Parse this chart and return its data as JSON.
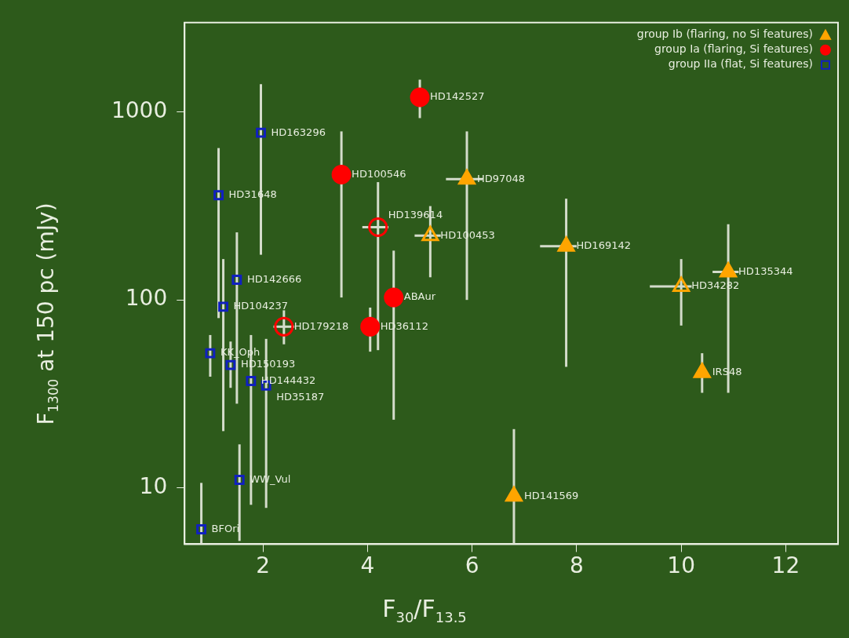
{
  "chart_data": {
    "type": "scatter",
    "xlabel": "F$_{30}$/F$_{13.5}$",
    "ylabel": "F$_{1300}$ at 150 pc (mJy)",
    "xlim": [
      0.5,
      13
    ],
    "xticks": [
      2,
      4,
      6,
      8,
      10,
      12
    ],
    "ylim": [
      5,
      3000
    ],
    "yticks": [
      10,
      100,
      1000
    ],
    "log": "y",
    "grid": false,
    "legend": "top right",
    "series": [
      {
        "name": "group Ib (flaring, no Si features)",
        "color": "#ffa500",
        "marker": "triangle",
        "x": [
          5.9,
          7.8,
          10.9,
          10.4,
          6.8
        ],
        "values": [
          440,
          193,
          141,
          41,
          9
        ],
        "errors": [
          [
            100,
            790
          ],
          [
            44,
            346
          ],
          [
            32,
            253
          ],
          [
            32,
            52
          ],
          [
            5,
            20.5
          ]
        ],
        "xerrors": [
          [
            5.5,
            6.2
          ],
          [
            7.3,
            8.0
          ],
          [
            10.6,
            11.1
          ],
          null,
          null
        ]
      },
      {
        "name": "group Ia (flaring, Si features)",
        "color": "#ff0000",
        "marker": "circle",
        "x": [
          5.0,
          3.5,
          4.5,
          4.05
        ],
        "values": [
          1200,
          465,
          103,
          72
        ],
        "errors": [
          [
            930,
            1490
          ],
          [
            103,
            790
          ],
          [
            23,
            183
          ],
          [
            53,
            91
          ]
        ]
      },
      {
        "name": "group IIa (flat, Si features)",
        "color": "#1020c0",
        "marker": "square",
        "x": [
          1.96,
          1.15,
          1.5,
          1.24,
          0.99,
          1.38,
          1.77,
          2.06,
          1.55,
          0.82
        ],
        "values": [
          777,
          361,
          128,
          92,
          52,
          45,
          37,
          35,
          11,
          6
        ],
        "errors": [
          [
            174,
            1410
          ],
          [
            80,
            644
          ],
          [
            28,
            229
          ],
          [
            20,
            165
          ],
          [
            39,
            65
          ],
          [
            34,
            60
          ],
          [
            8.1,
            65
          ],
          [
            7.8,
            62
          ],
          [
            5.2,
            17
          ],
          [
            5,
            10.6
          ]
        ]
      },
      {
        "color": "#ffa500",
        "marker": "triangle",
        "x": [
          5.2,
          10.0
        ],
        "values": [
          220,
          118
        ],
        "errors": [
          [
            132,
            316
          ],
          [
            73,
            165
          ]
        ],
        "xerrors": [
          [
            4.9,
            5.4
          ],
          [
            9.4,
            10.2
          ]
        ]
      },
      {
        "color": "#ff0000",
        "marker": "circle",
        "x": [
          4.2,
          2.4
        ],
        "values": [
          244,
          72
        ],
        "errors": [
          [
            54,
            424
          ],
          [
            58,
            88
          ]
        ],
        "xerrors": [
          [
            3.9,
            4.4
          ],
          [
            2.2,
            2.6
          ]
        ]
      }
    ],
    "annotations": [
      {
        "text": "HD97048",
        "x": 5.9,
        "y": 440
      },
      {
        "text": "HD169142",
        "x": 7.8,
        "y": 193
      },
      {
        "text": "HD135344",
        "x": 10.9,
        "y": 141
      },
      {
        "text": "IRS48",
        "x": 10.4,
        "y": 41
      },
      {
        "text": "HD141569",
        "x": 6.8,
        "y": 9
      },
      {
        "text": "HD142527",
        "x": 5.0,
        "y": 1200
      },
      {
        "text": "HD100546",
        "x": 3.5,
        "y": 465
      },
      {
        "text": "ABAur",
        "x": 4.5,
        "y": 103
      },
      {
        "text": "HD36112",
        "x": 4.05,
        "y": 72
      },
      {
        "text": "HD163296",
        "x": 1.96,
        "y": 777
      },
      {
        "text": "HD31648",
        "x": 1.15,
        "y": 361
      },
      {
        "text": "HD142666",
        "x": 1.5,
        "y": 128
      },
      {
        "text": "HD104237",
        "x": 1.24,
        "y": 92
      },
      {
        "text": "KK_Oph",
        "x": 0.99,
        "y": 52
      },
      {
        "text": "HD150193",
        "x": 1.38,
        "y": 45
      },
      {
        "text": "HD144432",
        "x": 1.77,
        "y": 37
      },
      {
        "text": "HD35187",
        "x": 2.06,
        "y": 35
      },
      {
        "text": "WW_Vul",
        "x": 1.55,
        "y": 11
      },
      {
        "text": "BFOri",
        "x": 0.82,
        "y": 6
      },
      {
        "text": "HD100453",
        "x": 5.2,
        "y": 220
      },
      {
        "text": "HD34282",
        "x": 10.0,
        "y": 118
      },
      {
        "text": "HD139614",
        "x": 4.2,
        "y": 244
      },
      {
        "text": "HD179218",
        "x": 2.4,
        "y": 72
      }
    ]
  }
}
